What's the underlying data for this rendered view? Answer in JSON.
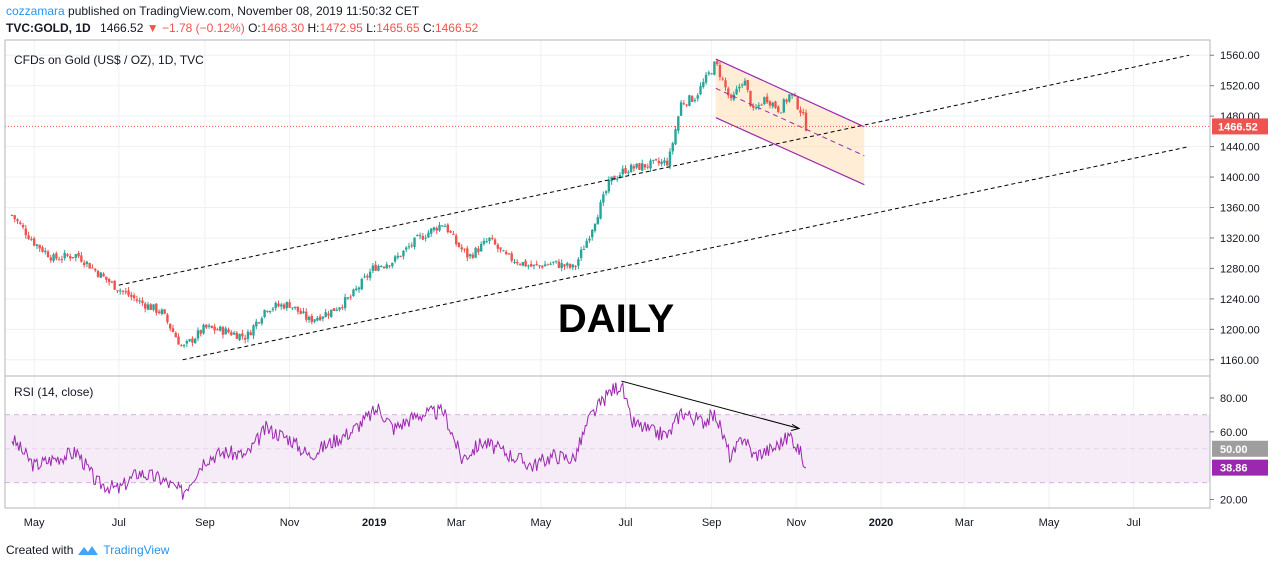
{
  "header": {
    "author": "cozzamara",
    "published": "published on TradingView.com, November 08, 2019 11:50:32 CET",
    "symbol": "TVC:GOLD, 1D",
    "last": "1466.52",
    "change": "−1.78 (−0.12%)",
    "o_label": "O:",
    "o": "1468.30",
    "h_label": "H:",
    "h": "1472.95",
    "l_label": "L:",
    "l": "1465.65",
    "c_label": "C:",
    "c": "1466.52"
  },
  "footer": {
    "created_with": "Created with",
    "brand": "TradingView"
  },
  "colors": {
    "up": "#26a69a",
    "down": "#ef5350",
    "rsi": "#9c27b0",
    "channel": "#9c27b0",
    "channel_fill": "#ffe0b2"
  },
  "chart_data": [
    {
      "type": "candlestick",
      "title": "CFDs on Gold (US$ / OZ), 1D, TVC",
      "annotation": "DAILY",
      "y_ticks": [
        "1560.00",
        "1520.00",
        "1480.00",
        "1440.00",
        "1400.00",
        "1360.00",
        "1320.00",
        "1280.00",
        "1240.00",
        "1200.00",
        "1160.00"
      ],
      "ylim": [
        1140,
        1580
      ],
      "x_ticks": [
        "May",
        "Jul",
        "Sep",
        "Nov",
        "2019",
        "Mar",
        "May",
        "Jul",
        "Sep",
        "Nov",
        "2020",
        "Mar",
        "May",
        "Jul"
      ],
      "last_price_label": "1466.52",
      "close_path": [
        [
          "2018-04-15",
          1350
        ],
        [
          "2018-05-01",
          1314
        ],
        [
          "2018-05-15",
          1293
        ],
        [
          "2018-06-01",
          1298
        ],
        [
          "2018-06-20",
          1268
        ],
        [
          "2018-07-01",
          1253
        ],
        [
          "2018-07-15",
          1237
        ],
        [
          "2018-08-01",
          1222
        ],
        [
          "2018-08-16",
          1175
        ],
        [
          "2018-09-01",
          1202
        ],
        [
          "2018-09-15",
          1198
        ],
        [
          "2018-10-01",
          1190
        ],
        [
          "2018-10-15",
          1228
        ],
        [
          "2018-11-01",
          1233
        ],
        [
          "2018-11-15",
          1212
        ],
        [
          "2018-12-01",
          1224
        ],
        [
          "2018-12-15",
          1242
        ],
        [
          "2019-01-01",
          1282
        ],
        [
          "2019-01-15",
          1290
        ],
        [
          "2019-02-01",
          1318
        ],
        [
          "2019-02-20",
          1340
        ],
        [
          "2019-03-01",
          1313
        ],
        [
          "2019-03-10",
          1295
        ],
        [
          "2019-03-25",
          1318
        ],
        [
          "2019-04-05",
          1296
        ],
        [
          "2019-04-25",
          1282
        ],
        [
          "2019-05-10",
          1287
        ],
        [
          "2019-05-25",
          1280
        ],
        [
          "2019-06-05",
          1325
        ],
        [
          "2019-06-20",
          1395
        ],
        [
          "2019-07-01",
          1410
        ],
        [
          "2019-07-15",
          1415
        ],
        [
          "2019-08-01",
          1420
        ],
        [
          "2019-08-10",
          1497
        ],
        [
          "2019-08-20",
          1505
        ],
        [
          "2019-09-04",
          1550
        ],
        [
          "2019-09-15",
          1498
        ],
        [
          "2019-09-24",
          1530
        ],
        [
          "2019-10-01",
          1485
        ],
        [
          "2019-10-10",
          1505
        ],
        [
          "2019-10-20",
          1488
        ],
        [
          "2019-10-28",
          1510
        ],
        [
          "2019-11-05",
          1485
        ],
        [
          "2019-11-08",
          1466.52
        ]
      ],
      "trendlines": [
        {
          "from": [
            "2018-07-01",
            1258
          ],
          "to": [
            "2020-08-10",
            1560
          ]
        },
        {
          "from": [
            "2018-08-16",
            1160
          ],
          "to": [
            "2020-08-10",
            1440
          ]
        }
      ],
      "channel": {
        "upper": [
          [
            "2019-09-04",
            1555
          ],
          [
            "2019-12-20",
            1466
          ]
        ],
        "lower": [
          [
            "2019-09-04",
            1478
          ],
          [
            "2019-12-20",
            1390
          ]
        ]
      }
    },
    {
      "type": "line",
      "title": "RSI (14, close)",
      "y_ticks": [
        "80.00",
        "60.00",
        "20.00"
      ],
      "ylim": [
        15,
        93
      ],
      "bands": [
        30,
        50,
        70
      ],
      "level_label": "50.00",
      "last_label": "38.86",
      "path": [
        [
          "2018-04-15",
          56
        ],
        [
          "2018-05-01",
          40
        ],
        [
          "2018-05-15",
          44
        ],
        [
          "2018-06-01",
          48
        ],
        [
          "2018-06-15",
          30
        ],
        [
          "2018-07-01",
          26
        ],
        [
          "2018-07-15",
          36
        ],
        [
          "2018-08-01",
          32
        ],
        [
          "2018-08-16",
          24
        ],
        [
          "2018-09-01",
          44
        ],
        [
          "2018-09-15",
          48
        ],
        [
          "2018-10-01",
          46
        ],
        [
          "2018-10-15",
          62
        ],
        [
          "2018-11-01",
          56
        ],
        [
          "2018-11-15",
          46
        ],
        [
          "2018-12-01",
          54
        ],
        [
          "2018-12-15",
          60
        ],
        [
          "2019-01-04",
          74
        ],
        [
          "2019-01-15",
          62
        ],
        [
          "2019-02-01",
          70
        ],
        [
          "2019-02-20",
          72
        ],
        [
          "2019-03-05",
          44
        ],
        [
          "2019-03-20",
          54
        ],
        [
          "2019-04-05",
          48
        ],
        [
          "2019-04-25",
          40
        ],
        [
          "2019-05-10",
          46
        ],
        [
          "2019-05-25",
          44
        ],
        [
          "2019-06-05",
          68
        ],
        [
          "2019-06-20",
          84
        ],
        [
          "2019-06-28",
          88
        ],
        [
          "2019-07-05",
          66
        ],
        [
          "2019-07-20",
          60
        ],
        [
          "2019-08-01",
          58
        ],
        [
          "2019-08-10",
          72
        ],
        [
          "2019-08-25",
          66
        ],
        [
          "2019-09-04",
          70
        ],
        [
          "2019-09-15",
          44
        ],
        [
          "2019-09-24",
          58
        ],
        [
          "2019-10-01",
          46
        ],
        [
          "2019-10-15",
          50
        ],
        [
          "2019-10-28",
          58
        ],
        [
          "2019-11-05",
          46
        ],
        [
          "2019-11-08",
          38.86
        ]
      ],
      "divergence": {
        "from": [
          "2019-06-28",
          90
        ],
        "to": [
          "2019-11-03",
          62
        ]
      }
    }
  ]
}
